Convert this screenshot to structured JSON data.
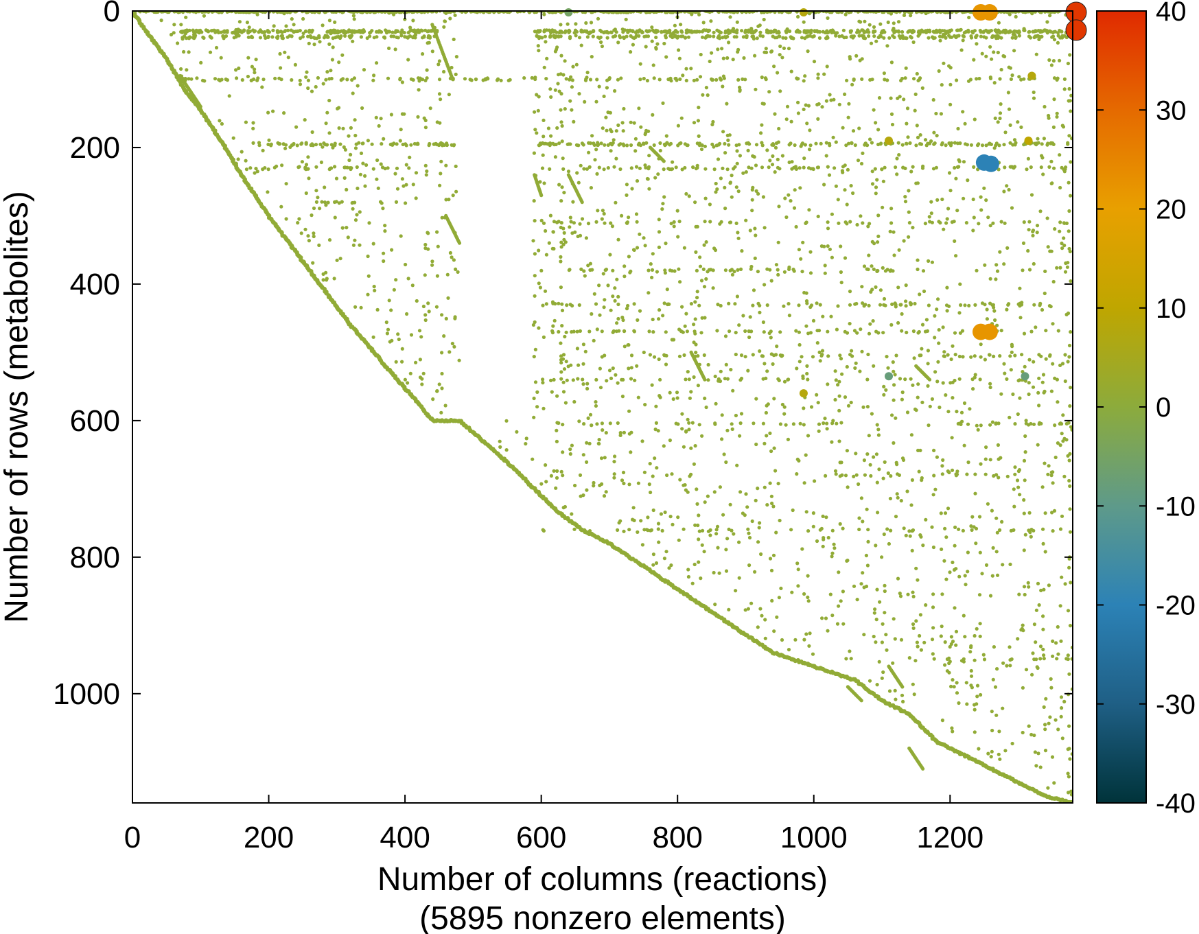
{
  "chart_data": {
    "type": "scatter",
    "title": "",
    "xlabel": "Number of columns (reactions)",
    "xlabel_line2": "(5895 nonzero elements)",
    "ylabel": "Number of rows (metabolites)",
    "xlim": [
      0,
      1380
    ],
    "ylim": [
      1160,
      0
    ],
    "y_inverted": true,
    "x_ticks": [
      0,
      200,
      400,
      600,
      800,
      1000,
      1200
    ],
    "x_tick_labels": [
      "0",
      "200",
      "400",
      "600",
      "800",
      "1000",
      "1200"
    ],
    "y_ticks": [
      0,
      200,
      400,
      600,
      800,
      1000
    ],
    "y_tick_labels": [
      "0",
      "200",
      "400",
      "600",
      "800",
      "1000"
    ],
    "grid": false,
    "colorbar": {
      "min": -40,
      "max": 40,
      "ticks": [
        40,
        30,
        20,
        10,
        0,
        -10,
        -20,
        -30,
        -40
      ],
      "tick_labels": [
        "40",
        "30",
        "20",
        "10",
        "0",
        "-10",
        "-20",
        "-30",
        "-40"
      ],
      "colors": [
        "#00333a",
        "#1f5f85",
        "#2c82b6",
        "#5e9a8a",
        "#8cab3c",
        "#bfa600",
        "#e8a000",
        "#e56a00",
        "#e02a00"
      ]
    },
    "default_value": 1,
    "diagonal_path": [
      [
        0,
        0
      ],
      [
        20,
        30
      ],
      [
        50,
        70
      ],
      [
        80,
        120
      ],
      [
        100,
        145
      ],
      [
        130,
        190
      ],
      [
        160,
        240
      ],
      [
        200,
        300
      ],
      [
        260,
        380
      ],
      [
        320,
        460
      ],
      [
        380,
        530
      ],
      [
        420,
        575
      ],
      [
        440,
        600
      ],
      [
        480,
        600
      ],
      [
        560,
        670
      ],
      [
        620,
        730
      ],
      [
        660,
        760
      ],
      [
        700,
        780
      ],
      [
        760,
        820
      ],
      [
        820,
        860
      ],
      [
        880,
        900
      ],
      [
        940,
        940
      ],
      [
        1000,
        960
      ],
      [
        1060,
        980
      ],
      [
        1100,
        1010
      ],
      [
        1140,
        1030
      ],
      [
        1180,
        1070
      ],
      [
        1240,
        1100
      ],
      [
        1300,
        1130
      ],
      [
        1340,
        1150
      ],
      [
        1380,
        1160
      ]
    ],
    "diagonal_segments": [
      {
        "x": [
          70,
          100
        ],
        "y": [
          95,
          140
        ]
      },
      {
        "x": [
          440,
          470
        ],
        "y": [
          20,
          100
        ]
      },
      {
        "x": [
          460,
          480
        ],
        "y": [
          300,
          340
        ]
      },
      {
        "x": [
          590,
          600
        ],
        "y": [
          240,
          270
        ]
      },
      {
        "x": [
          640,
          660
        ],
        "y": [
          240,
          280
        ]
      },
      {
        "x": [
          760,
          780
        ],
        "y": [
          200,
          220
        ]
      },
      {
        "x": [
          820,
          840
        ],
        "y": [
          500,
          540
        ]
      },
      {
        "x": [
          1050,
          1070
        ],
        "y": [
          990,
          1010
        ]
      },
      {
        "x": [
          1110,
          1130
        ],
        "y": [
          960,
          990
        ]
      },
      {
        "x": [
          1140,
          1160
        ],
        "y": [
          1080,
          1110
        ]
      },
      {
        "x": [
          1150,
          1170
        ],
        "y": [
          520,
          540
        ]
      }
    ],
    "dense_rows": [
      {
        "y": 0,
        "x": [
          0,
          1380
        ],
        "density": 1.0
      },
      {
        "y": 30,
        "x": [
          70,
          450
        ],
        "density": 0.55
      },
      {
        "y": 30,
        "x": [
          590,
          1380
        ],
        "density": 0.55
      },
      {
        "y": 38,
        "x": [
          70,
          450
        ],
        "density": 0.3
      },
      {
        "y": 38,
        "x": [
          590,
          1380
        ],
        "density": 0.3
      },
      {
        "y": 100,
        "x": [
          70,
          1380
        ],
        "density": 0.12
      },
      {
        "y": 195,
        "x": [
          150,
          480
        ],
        "density": 0.25
      },
      {
        "y": 195,
        "x": [
          590,
          1380
        ],
        "density": 0.25
      },
      {
        "y": 230,
        "x": [
          160,
          430
        ],
        "density": 0.12
      },
      {
        "y": 230,
        "x": [
          590,
          1380
        ],
        "density": 0.12
      },
      {
        "y": 280,
        "x": [
          250,
          380
        ],
        "density": 0.1
      },
      {
        "y": 310,
        "x": [
          600,
          1380
        ],
        "density": 0.08
      },
      {
        "y": 380,
        "x": [
          600,
          1380
        ],
        "density": 0.08
      },
      {
        "y": 430,
        "x": [
          600,
          1380
        ],
        "density": 0.1
      },
      {
        "y": 470,
        "x": [
          600,
          1380
        ],
        "density": 0.1
      },
      {
        "y": 505,
        "x": [
          600,
          1380
        ],
        "density": 0.08
      },
      {
        "y": 540,
        "x": [
          600,
          1380
        ],
        "density": 0.06
      },
      {
        "y": 605,
        "x": [
          610,
          1380
        ],
        "density": 0.08
      },
      {
        "y": 680,
        "x": [
          980,
          1380
        ],
        "density": 0.06
      },
      {
        "y": 760,
        "x": [
          600,
          1380
        ],
        "density": 0.07
      },
      {
        "y": 950,
        "x": [
          1100,
          1380
        ],
        "density": 0.06
      }
    ],
    "special_points": [
      {
        "x": 1245,
        "y": 2,
        "value": 22
      },
      {
        "x": 1258,
        "y": 2,
        "value": 22
      },
      {
        "x": 1385,
        "y": 2,
        "value": 38
      },
      {
        "x": 1385,
        "y": 28,
        "value": 38
      },
      {
        "x": 1250,
        "y": 222,
        "value": -20
      },
      {
        "x": 1260,
        "y": 224,
        "value": -20
      },
      {
        "x": 1245,
        "y": 470,
        "value": 22
      },
      {
        "x": 1258,
        "y": 470,
        "value": 22
      },
      {
        "x": 985,
        "y": 2,
        "value": 8
      },
      {
        "x": 1320,
        "y": 95,
        "value": 8
      },
      {
        "x": 1315,
        "y": 190,
        "value": 10
      },
      {
        "x": 1110,
        "y": 190,
        "value": 8
      },
      {
        "x": 985,
        "y": 560,
        "value": 8
      },
      {
        "x": 1110,
        "y": 535,
        "value": -8
      },
      {
        "x": 1310,
        "y": 535,
        "value": -8
      },
      {
        "x": 640,
        "y": 2,
        "value": -5
      }
    ]
  }
}
